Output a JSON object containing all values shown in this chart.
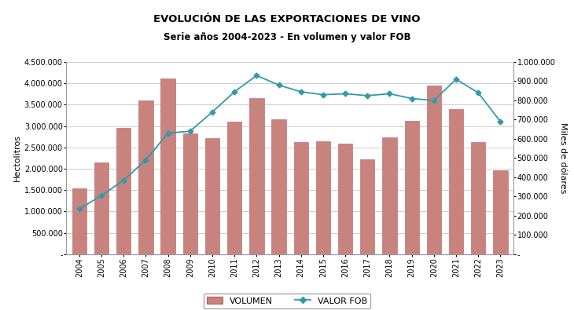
{
  "years": [
    2004,
    2005,
    2006,
    2007,
    2008,
    2009,
    2010,
    2011,
    2012,
    2013,
    2014,
    2015,
    2016,
    2017,
    2018,
    2019,
    2020,
    2021,
    2022,
    2023
  ],
  "volumen": [
    1550000,
    2150000,
    2950000,
    3600000,
    4120000,
    2820000,
    2720000,
    3110000,
    3650000,
    3150000,
    2620000,
    2650000,
    2590000,
    2230000,
    2730000,
    3130000,
    3950000,
    3400000,
    2630000,
    1960000
  ],
  "valor_fob": [
    235000,
    305000,
    385000,
    490000,
    630000,
    640000,
    740000,
    845000,
    930000,
    880000,
    845000,
    830000,
    835000,
    825000,
    835000,
    810000,
    800000,
    910000,
    840000,
    690000
  ],
  "bar_color": "#c9837e",
  "bar_edge_color": "#b06060",
  "line_color": "#3399aa",
  "title_line1": "EVOLUCIÓN DE LAS EXPORTACIONES DE VINO",
  "title_line2": "Serie años 2004-2023 - En volumen y valor FOB",
  "ylabel_left": "Hectolitros",
  "ylabel_right": "Miles de dólares",
  "ylim_left": [
    0,
    4500000
  ],
  "ylim_right": [
    0,
    1000000
  ],
  "yticks_left": [
    0,
    500000,
    1000000,
    1500000,
    2000000,
    2500000,
    3000000,
    3500000,
    4000000,
    4500000
  ],
  "ytick_labels_left": [
    "-",
    "500.000",
    "1.000.000",
    "1.500.000",
    "2.000.000",
    "2.500.000",
    "3.000.000",
    "3.500.000",
    "4.000.000",
    "4.500.000"
  ],
  "yticks_right": [
    0,
    100000,
    200000,
    300000,
    400000,
    500000,
    600000,
    700000,
    800000,
    900000,
    1000000
  ],
  "ytick_labels_right": [
    "-",
    "100.000",
    "200.000",
    "300.000",
    "400.000",
    "500.000",
    "600.000",
    "700.000",
    "800.000",
    "900.000",
    "1.000.000"
  ],
  "legend_volumen": "VOLUMEN",
  "legend_valor": "VALOR FOB",
  "background_color": "#ffffff",
  "grid_color": "#bbbbbb",
  "spine_color": "#999999"
}
